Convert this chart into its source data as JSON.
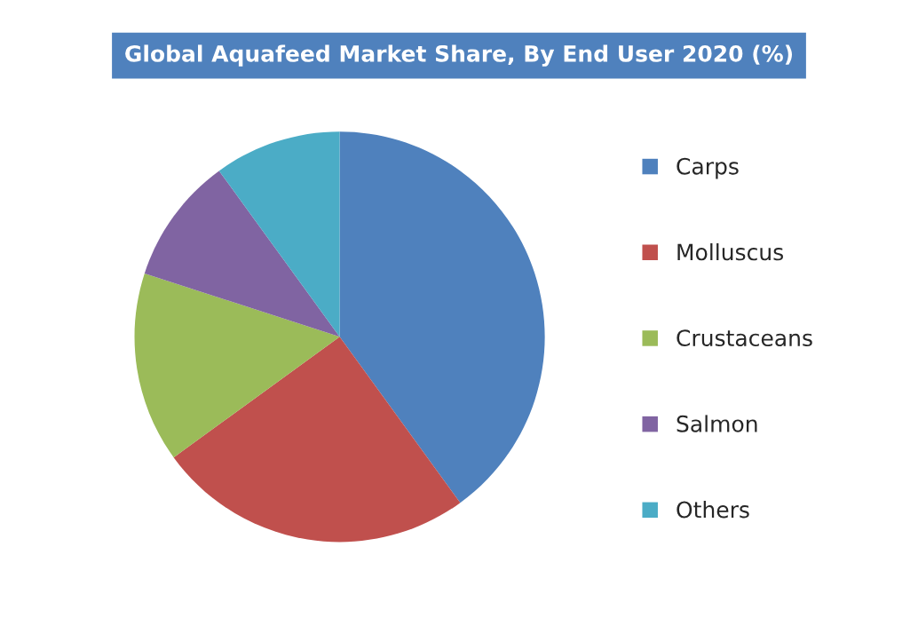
{
  "chart_data": {
    "type": "pie",
    "title": "Global Aquafeed Market Share, By End User 2020 (%)",
    "categories": [
      "Carps",
      "Molluscus",
      "Crustaceans",
      "Salmon",
      "Others"
    ],
    "values": [
      40,
      25,
      15,
      10,
      10
    ],
    "colors": [
      "#4f81bd",
      "#c0504d",
      "#9bbb59",
      "#8064a2",
      "#4bacc6"
    ],
    "legend": "right"
  }
}
